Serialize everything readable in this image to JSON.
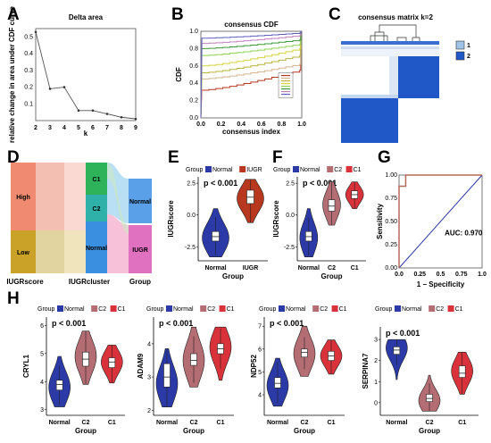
{
  "colors": {
    "normal": "#2b3aa6",
    "iugr": "#b7371f",
    "c2": "#b46d72",
    "c1": "#d9323a",
    "roc": "#b46a58"
  },
  "panel_labels": [
    "A",
    "B",
    "C",
    "D",
    "E",
    "F",
    "G",
    "H"
  ],
  "chart_data": [
    {
      "id": "A",
      "type": "line",
      "title": "Delta area",
      "xlabel": "k",
      "ylabel": "relative change in area under CDF curve",
      "x": [
        2,
        3,
        4,
        5,
        6,
        7,
        8,
        9
      ],
      "values": [
        0.53,
        0.19,
        0.2,
        0.06,
        0.06,
        0.04,
        0.02,
        0.01
      ],
      "xlim": [
        2,
        9
      ],
      "ylim": [
        0,
        0.55
      ],
      "yticks": [
        0.1,
        0.2,
        0.3,
        0.4,
        0.5
      ],
      "ytick_labels": [
        "0.1",
        "0.2",
        "0.3",
        "0.4",
        "0.5"
      ],
      "xticks": [
        2,
        3,
        4,
        5,
        6,
        7,
        8,
        9
      ]
    },
    {
      "id": "B",
      "type": "line",
      "title": "consensus CDF",
      "xlabel": "consensus index",
      "ylabel": "CDF",
      "xlim": [
        0,
        1
      ],
      "ylim": [
        0,
        1
      ],
      "xticks": [
        0,
        0.2,
        0.4,
        0.6,
        0.8,
        1.0
      ],
      "xtick_labels": [
        "0.0",
        "0.2",
        "0.4",
        "0.6",
        "0.8",
        "1.0"
      ],
      "yticks": [
        0,
        0.2,
        0.4,
        0.6,
        0.8,
        1.0
      ],
      "ytick_labels": [
        "0.0",
        "0.2",
        "0.4",
        "0.6",
        "0.8",
        "1.0"
      ],
      "series": [
        {
          "color": "#b7371f",
          "start": 0.32,
          "end": 0.55
        },
        {
          "color": "#d2b48c",
          "start": 0.45,
          "end": 0.62
        },
        {
          "color": "#b8b33a",
          "start": 0.52,
          "end": 0.72
        },
        {
          "color": "#d4d43a",
          "start": 0.6,
          "end": 0.8
        },
        {
          "color": "#8fd14f",
          "start": 0.72,
          "end": 0.85
        },
        {
          "color": "#3a9a3a",
          "start": 0.8,
          "end": 0.9
        },
        {
          "color": "#c080c0",
          "start": 0.86,
          "end": 0.95
        },
        {
          "color": "#6060c0",
          "start": 0.92,
          "end": 0.98
        }
      ]
    },
    {
      "id": "C",
      "type": "heatmap",
      "title": "consensus matrix k=2",
      "legend": [
        "1",
        "2"
      ]
    },
    {
      "id": "D",
      "type": "sankey",
      "axes": [
        "IUGRscore",
        "IUGRcluster",
        "Group"
      ],
      "col1": [
        "High",
        "Low"
      ],
      "col2": [
        "C1",
        "C2",
        "Normal"
      ],
      "col3": [
        "Normal",
        "IUGR"
      ]
    },
    {
      "id": "E",
      "type": "violin",
      "xlabel": "Group",
      "ylabel": "IUGRscore",
      "legend_title": "Group",
      "legend": [
        "Normal",
        "IUGR"
      ],
      "pvalue": "p < 0.001",
      "categories": [
        "Normal",
        "IUGR"
      ],
      "ylim": [
        -3.6,
        3.0
      ],
      "yticks": [
        -2.5,
        0,
        2.5
      ],
      "ytick_labels": [
        "-2.5",
        "0.0",
        "2.5"
      ],
      "groups": [
        {
          "name": "Normal",
          "median": -1.7,
          "q1": -2.05,
          "q3": -1.3,
          "min": -3.3,
          "max": 0.5,
          "peak": -1.8
        },
        {
          "name": "IUGR",
          "median": 1.4,
          "q1": 0.9,
          "q3": 1.95,
          "min": -0.6,
          "max": 2.8,
          "peak": 1.3
        }
      ]
    },
    {
      "id": "F",
      "type": "violin",
      "xlabel": "Group",
      "ylabel": "IUGRscore",
      "legend_title": "Group",
      "legend": [
        "Normal",
        "C2",
        "C1"
      ],
      "pvalue": "p < 0.001",
      "categories": [
        "Normal",
        "C2",
        "C1"
      ],
      "ylim": [
        -3.6,
        3.0
      ],
      "yticks": [
        -2.5,
        0,
        2.5
      ],
      "ytick_labels": [
        "-2.5",
        "0.0",
        "2.5"
      ],
      "groups": [
        {
          "name": "Normal",
          "median": -1.7,
          "q1": -2.05,
          "q3": -1.3,
          "min": -3.3,
          "max": 0.5,
          "peak": -1.8
        },
        {
          "name": "C2",
          "median": 0.7,
          "q1": 0.3,
          "q3": 1.2,
          "min": -0.8,
          "max": 2.6,
          "peak": 0.8
        },
        {
          "name": "C1",
          "median": 1.6,
          "q1": 1.3,
          "q3": 1.9,
          "min": 0.5,
          "max": 2.6,
          "peak": 1.6
        }
      ]
    },
    {
      "id": "G",
      "type": "roc",
      "xlabel": "1 − Specificity",
      "ylabel": "Sensitivity",
      "auc_label": "AUC: 0.970",
      "xlim": [
        0,
        1
      ],
      "ylim": [
        0,
        1
      ],
      "xticks": [
        0,
        0.25,
        0.5,
        0.75,
        1.0
      ],
      "xtick_labels": [
        "0.0",
        "0.25",
        "0.5",
        "0.75",
        "1.0"
      ],
      "yticks": [
        0,
        0.25,
        0.5,
        0.75,
        1.0
      ],
      "ytick_labels": [
        "0.00",
        "0.25",
        "0.50",
        "0.75",
        "1.00"
      ],
      "x": [
        0,
        0,
        0.08,
        0.08,
        0.25,
        0.25,
        1.0
      ],
      "y": [
        0,
        0.88,
        0.88,
        1.0,
        1.0,
        1.0,
        1.0
      ]
    },
    {
      "id": "H1",
      "type": "violin",
      "xlabel": "Group",
      "ylabel": "CRYL1",
      "legend_title": "Group",
      "legend": [
        "Normal",
        "C2",
        "C1"
      ],
      "pvalue": "p < 0.001",
      "categories": [
        "Normal",
        "C2",
        "C1"
      ],
      "ylim": [
        2.8,
        6.3
      ],
      "yticks": [
        3,
        4,
        5,
        6
      ],
      "ytick_labels": [
        "3",
        "4",
        "5",
        "6"
      ],
      "groups": [
        {
          "name": "Normal",
          "median": 3.9,
          "q1": 3.7,
          "q3": 4.05,
          "min": 3.1,
          "max": 4.9,
          "peak": 3.8
        },
        {
          "name": "C2",
          "median": 4.8,
          "q1": 4.55,
          "q3": 5.05,
          "min": 3.9,
          "max": 5.8,
          "peak": 4.9
        },
        {
          "name": "C1",
          "median": 4.7,
          "q1": 4.5,
          "q3": 4.85,
          "min": 3.95,
          "max": 5.3,
          "peak": 4.7
        }
      ]
    },
    {
      "id": "H2",
      "type": "violin",
      "xlabel": "Group",
      "ylabel": "ADAM9",
      "legend_title": "Group",
      "legend": [
        "Normal",
        "C2",
        "C1"
      ],
      "pvalue": "p < 0.001",
      "categories": [
        "Normal",
        "C2",
        "C1"
      ],
      "ylim": [
        1.85,
        4.8
      ],
      "yticks": [
        2,
        3,
        4
      ],
      "ytick_labels": [
        "2",
        "3",
        "4"
      ],
      "groups": [
        {
          "name": "Normal",
          "median": 3.0,
          "q1": 2.7,
          "q3": 3.4,
          "min": 2.1,
          "max": 3.85,
          "peak": 2.8
        },
        {
          "name": "C2",
          "median": 3.5,
          "q1": 3.35,
          "q3": 3.7,
          "min": 2.7,
          "max": 4.5,
          "peak": 3.5
        },
        {
          "name": "C1",
          "median": 3.85,
          "q1": 3.7,
          "q3": 4.0,
          "min": 2.9,
          "max": 4.5,
          "peak": 3.9
        }
      ]
    },
    {
      "id": "H3",
      "type": "violin",
      "xlabel": "Group",
      "ylabel": "NDP52",
      "legend_title": "Group",
      "legend": [
        "Normal",
        "C2",
        "C1"
      ],
      "pvalue": "p < 0.001",
      "categories": [
        "Normal",
        "C2",
        "C1"
      ],
      "ylim": [
        3.1,
        7.4
      ],
      "yticks": [
        4,
        5,
        6,
        7
      ],
      "ytick_labels": [
        "4",
        "5",
        "6",
        "7"
      ],
      "groups": [
        {
          "name": "Normal",
          "median": 4.5,
          "q1": 4.3,
          "q3": 4.75,
          "min": 3.5,
          "max": 5.6,
          "peak": 4.4
        },
        {
          "name": "C2",
          "median": 5.85,
          "q1": 5.65,
          "q3": 6.0,
          "min": 4.8,
          "max": 7.0,
          "peak": 5.8
        },
        {
          "name": "C1",
          "median": 5.7,
          "q1": 5.5,
          "q3": 5.9,
          "min": 4.9,
          "max": 6.4,
          "peak": 5.7
        }
      ]
    },
    {
      "id": "H4",
      "type": "violin",
      "xlabel": "Group",
      "ylabel": "SERPINA7",
      "legend_title": "Group",
      "legend": [
        "Normal",
        "C2",
        "C1"
      ],
      "pvalue": "p < 0.001",
      "categories": [
        "Normal",
        "C2",
        "C1"
      ],
      "ylim": [
        -0.6,
        3.6
      ],
      "yticks": [
        0,
        1,
        2,
        3
      ],
      "ytick_labels": [
        "0",
        "1",
        "2",
        "3"
      ],
      "groups": [
        {
          "name": "Normal",
          "median": 2.5,
          "q1": 2.3,
          "q3": 2.65,
          "min": 1.1,
          "max": 3.0,
          "peak": 2.6
        },
        {
          "name": "C2",
          "median": 0.2,
          "q1": 0.05,
          "q3": 0.4,
          "min": -0.4,
          "max": 1.3,
          "peak": 0.1
        },
        {
          "name": "C1",
          "median": 1.4,
          "q1": 1.2,
          "q3": 1.75,
          "min": 0.4,
          "max": 2.4,
          "peak": 1.5
        }
      ]
    }
  ]
}
